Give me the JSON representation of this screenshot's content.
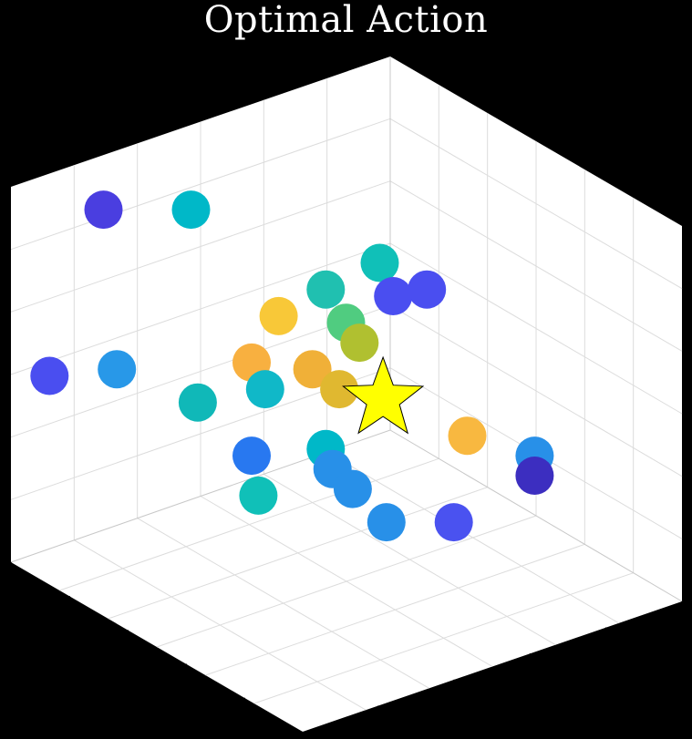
{
  "chart_data": {
    "type": "scatter",
    "title": "Optimal Action",
    "view": "3d-cube",
    "grid": true,
    "xlabel": "",
    "ylabel": "",
    "zlabel": "",
    "colormap": "parula",
    "colors": {
      "background": "#000000",
      "pane": "#ffffff",
      "grid": "#dcdcdc",
      "edge": "#c8c8c8",
      "axis_tick": "#000000",
      "star_fill": "#ffff00",
      "star_edge": "#000000"
    },
    "points": [
      {
        "x": 0.14,
        "y": 0.7,
        "color": "#4a3ee0"
      },
      {
        "x": 0.27,
        "y": 0.7,
        "color": "#00b8c8"
      },
      {
        "x": 0.55,
        "y": 0.62,
        "color": "#10c0b8"
      },
      {
        "x": 0.47,
        "y": 0.58,
        "color": "#20c0b0"
      },
      {
        "x": 0.57,
        "y": 0.57,
        "color": "#4a4ef0"
      },
      {
        "x": 0.62,
        "y": 0.58,
        "color": "#4a4ef0"
      },
      {
        "x": 0.4,
        "y": 0.54,
        "color": "#f8c838"
      },
      {
        "x": 0.5,
        "y": 0.53,
        "color": "#50cc80"
      },
      {
        "x": 0.52,
        "y": 0.5,
        "color": "#b0c030"
      },
      {
        "x": 0.36,
        "y": 0.47,
        "color": "#f8b040"
      },
      {
        "x": 0.45,
        "y": 0.46,
        "color": "#f0b038"
      },
      {
        "x": 0.06,
        "y": 0.45,
        "color": "#4a4ef0"
      },
      {
        "x": 0.16,
        "y": 0.46,
        "color": "#2898e8"
      },
      {
        "x": 0.38,
        "y": 0.43,
        "color": "#10b8c8"
      },
      {
        "x": 0.49,
        "y": 0.43,
        "color": "#e0b830"
      },
      {
        "x": 0.28,
        "y": 0.41,
        "color": "#10b8b8"
      },
      {
        "x": 0.68,
        "y": 0.36,
        "color": "#f8b840"
      },
      {
        "x": 0.36,
        "y": 0.33,
        "color": "#2878f0"
      },
      {
        "x": 0.47,
        "y": 0.34,
        "color": "#00b8c8"
      },
      {
        "x": 0.48,
        "y": 0.31,
        "color": "#2890e8"
      },
      {
        "x": 0.78,
        "y": 0.33,
        "color": "#2890e8"
      },
      {
        "x": 0.78,
        "y": 0.3,
        "color": "#3c2ec0"
      },
      {
        "x": 0.51,
        "y": 0.28,
        "color": "#2890e8"
      },
      {
        "x": 0.37,
        "y": 0.27,
        "color": "#10c0b8"
      },
      {
        "x": 0.56,
        "y": 0.23,
        "color": "#2890e8"
      },
      {
        "x": 0.66,
        "y": 0.23,
        "color": "#4a52f0"
      }
    ],
    "optimal": {
      "x": 0.555,
      "y": 0.415,
      "marker": "star",
      "color": "#ffff00"
    }
  }
}
